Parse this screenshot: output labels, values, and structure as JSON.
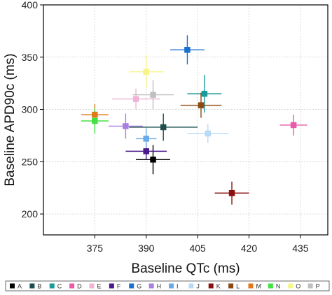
{
  "chart_data": {
    "type": "scatter",
    "title": "",
    "xlabel": "Baseline QTc (ms)",
    "ylabel": "Baseline APD90c (ms)",
    "xlim": [
      360,
      443
    ],
    "ylim": [
      180,
      400
    ],
    "xticks": [
      375,
      390,
      405,
      420,
      435
    ],
    "yticks": [
      200,
      250,
      300,
      350,
      400
    ],
    "grid": true,
    "legend_position": "bottom",
    "series": [
      {
        "name": "A",
        "color": "#000000",
        "x": 392,
        "y": 252,
        "xerr": 5,
        "yerr": 14
      },
      {
        "name": "B",
        "color": "#1f4e4e",
        "x": 395,
        "y": 283,
        "xerr": 10,
        "yerr": 13
      },
      {
        "name": "C",
        "color": "#1a9a9a",
        "x": 407,
        "y": 315,
        "xerr": 5,
        "yerr": 18
      },
      {
        "name": "D",
        "color": "#e85aa8",
        "x": 433,
        "y": 285,
        "xerr": 4,
        "yerr": 10
      },
      {
        "name": "E",
        "color": "#f0b3d6",
        "x": 387,
        "y": 310,
        "xerr": 7,
        "yerr": 10
      },
      {
        "name": "F",
        "color": "#4b1a8a",
        "x": 390,
        "y": 260,
        "xerr": 6,
        "yerr": 8
      },
      {
        "name": "G",
        "color": "#1a6fd0",
        "x": 402,
        "y": 357,
        "xerr": 5,
        "yerr": 14
      },
      {
        "name": "H",
        "color": "#a97ee0",
        "x": 384,
        "y": 284,
        "xerr": 5,
        "yerr": 12
      },
      {
        "name": "I",
        "color": "#6aaae8",
        "x": 390,
        "y": 272,
        "xerr": 3,
        "yerr": 10
      },
      {
        "name": "J",
        "color": "#b8daf5",
        "x": 408,
        "y": 277,
        "xerr": 6,
        "yerr": 9
      },
      {
        "name": "K",
        "color": "#8b1010",
        "x": 415,
        "y": 220,
        "xerr": 5,
        "yerr": 11
      },
      {
        "name": "L",
        "color": "#8b4a14",
        "x": 406,
        "y": 304,
        "xerr": 6,
        "yerr": 12
      },
      {
        "name": "M",
        "color": "#e07a18",
        "x": 375,
        "y": 295,
        "xerr": 4,
        "yerr": 10
      },
      {
        "name": "N",
        "color": "#44e044",
        "x": 375,
        "y": 289,
        "xerr": 4,
        "yerr": 12
      },
      {
        "name": "O",
        "color": "#f5f58a",
        "x": 390,
        "y": 336,
        "xerr": 5,
        "yerr": 16
      },
      {
        "name": "P",
        "color": "#c0c0c0",
        "x": 392,
        "y": 314,
        "xerr": 6,
        "yerr": 14
      }
    ]
  }
}
